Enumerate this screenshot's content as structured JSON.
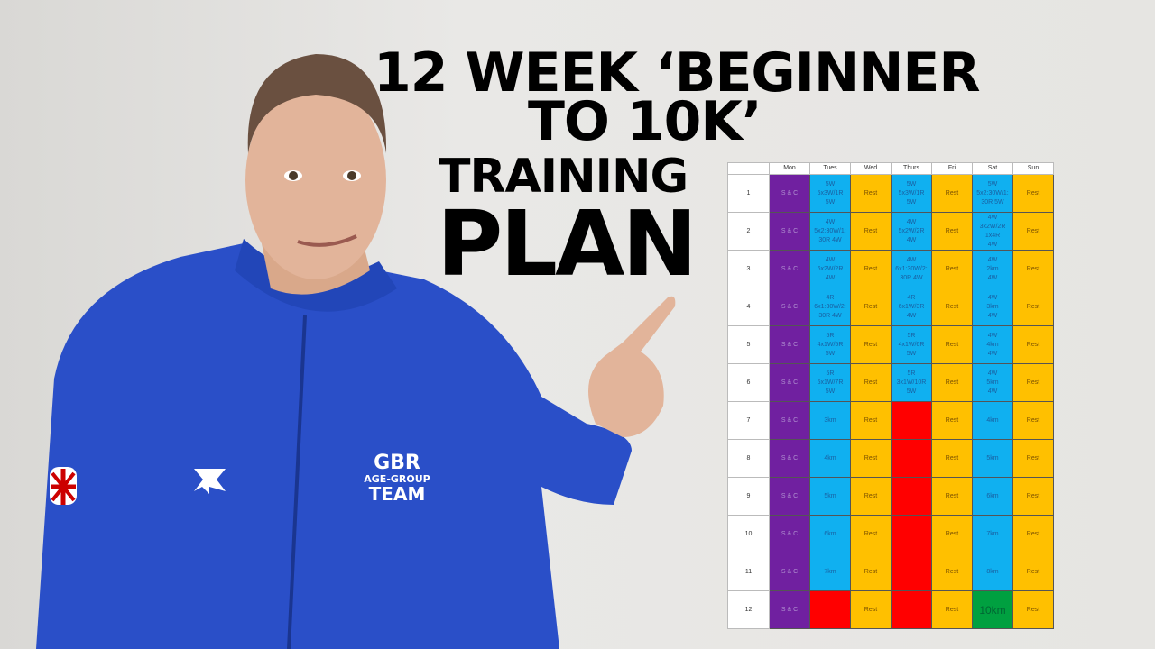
{
  "title": {
    "line1": "12 WEEK ‘BEGINNER",
    "line2": "TO 10K’",
    "line3": "TRAINING",
    "line4": "PLAN"
  },
  "jacket": {
    "line1": "GBR",
    "line2": "AGE-GROUP",
    "line3": "TEAM"
  },
  "table": {
    "headers": [
      "",
      "Mon",
      "Tues",
      "Wed",
      "Thurs",
      "Fri",
      "Sat",
      "Sun"
    ],
    "rows": [
      [
        "1",
        "S & C",
        "5W\n5x3W/1R\n5W",
        "Rest",
        "5W\n5x3W/1R\n5W",
        "Rest",
        "5W\n5x2:30W/1:\n30R 5W",
        "Rest"
      ],
      [
        "2",
        "S & C",
        "4W\n5x2:30W/1:\n30R 4W",
        "Rest",
        "4W\n5x2W/2R\n4W",
        "Rest",
        "4W\n3x2W/2R\n1x4R\n4W",
        "Rest"
      ],
      [
        "3",
        "S & C",
        "4W\n6x2W/2R\n4W",
        "Rest",
        "4W\n6x1:30W/2:\n30R 4W",
        "Rest",
        "4W\n2km\n4W",
        "Rest"
      ],
      [
        "4",
        "S & C",
        "4R\n6x1:30W/2:\n30R 4W",
        "Rest",
        "4R\n6x1W/3R\n4W",
        "Rest",
        "4W\n3km\n4W",
        "Rest"
      ],
      [
        "5",
        "S & C",
        "5R\n4x1W/5R\n5W",
        "Rest",
        "5R\n4x1W/6R\n5W",
        "Rest",
        "4W\n4km\n4W",
        "Rest"
      ],
      [
        "6",
        "S & C",
        "5R\n5x1W/7R\n5W",
        "Rest",
        "5R\n3x1W/10R\n5W",
        "Rest",
        "4W\n5km\n4W",
        "Rest"
      ],
      [
        "7",
        "S & C",
        "3km",
        "Rest",
        "",
        "Rest",
        "4km",
        "Rest"
      ],
      [
        "8",
        "S & C",
        "4km",
        "Rest",
        "",
        "Rest",
        "5km",
        "Rest"
      ],
      [
        "9",
        "S & C",
        "5km",
        "Rest",
        "",
        "Rest",
        "6km",
        "Rest"
      ],
      [
        "10",
        "S & C",
        "6km",
        "Rest",
        "",
        "Rest",
        "7km",
        "Rest"
      ],
      [
        "11",
        "S & C",
        "7km",
        "Rest",
        "",
        "Rest",
        "8km",
        "Rest"
      ],
      [
        "12",
        "S & C",
        "",
        "Rest",
        "",
        "Rest",
        "10km",
        "Rest"
      ]
    ],
    "colors": {
      "s_and_c": "#7020a0",
      "run": "#10b0f0",
      "rest": "#ffc000",
      "intervals": "#ff0000",
      "race": "#00a040"
    }
  }
}
